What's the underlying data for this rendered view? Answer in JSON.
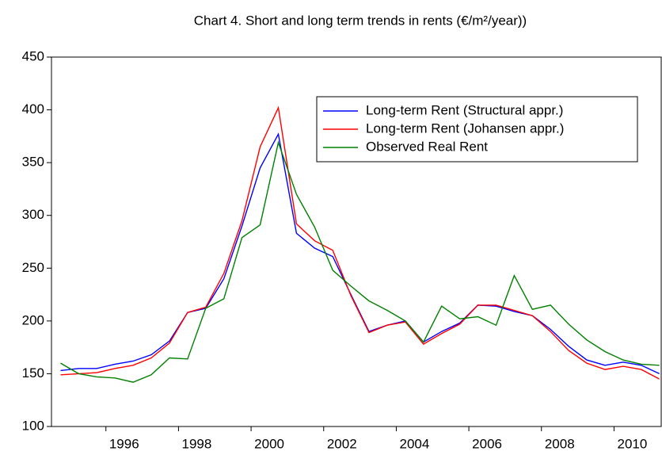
{
  "chart_data": {
    "type": "line",
    "title": "Chart 4. Short and long term trends in rents (€/m²/year))",
    "x": [
      1994.75,
      1995.25,
      1995.75,
      1996.25,
      1996.75,
      1997.25,
      1997.75,
      1998.25,
      1998.75,
      1999.25,
      1999.75,
      2000.25,
      2000.75,
      2001.25,
      2001.75,
      2002.25,
      2002.75,
      2003.25,
      2003.75,
      2004.25,
      2004.75,
      2005.25,
      2005.75,
      2006.25,
      2006.75,
      2007.25,
      2007.75,
      2008.25,
      2008.75,
      2009.25,
      2009.75,
      2010.25,
      2010.75,
      2011.25
    ],
    "series": [
      {
        "name": "Long-term Rent (Structural appr.)",
        "color": "#0000ff",
        "values": [
          153,
          155,
          155,
          159,
          162,
          168,
          181,
          208,
          212,
          240,
          290,
          345,
          377,
          283,
          269,
          261,
          225,
          190,
          196,
          200,
          180,
          190,
          198,
          215,
          214,
          209,
          205,
          192,
          176,
          163,
          158,
          161,
          158,
          150
        ]
      },
      {
        "name": "Long-term Rent (Johansen appr.)",
        "color": "#ff0000",
        "values": [
          149,
          150,
          151,
          155,
          158,
          165,
          179,
          208,
          213,
          245,
          295,
          365,
          402,
          292,
          276,
          267,
          224,
          189,
          196,
          199,
          178,
          188,
          197,
          215,
          215,
          210,
          205,
          190,
          172,
          160,
          154,
          157,
          154,
          145
        ]
      },
      {
        "name": "Observed Real Rent",
        "color": "#008000",
        "values": [
          160,
          150,
          147,
          146,
          142,
          149,
          165,
          164,
          212,
          221,
          279,
          291,
          369,
          320,
          289,
          248,
          233,
          219,
          210,
          200,
          180,
          214,
          202,
          204,
          196,
          243,
          211,
          215,
          197,
          182,
          171,
          163,
          159,
          158
        ]
      }
    ],
    "xlim": [
      1994.5,
      2011.3
    ],
    "xticks": [
      1996,
      1998,
      2000,
      2002,
      2004,
      2006,
      2008,
      2010
    ],
    "ylim": [
      100,
      450
    ],
    "yticks": [
      100,
      150,
      200,
      250,
      300,
      350,
      400,
      450
    ],
    "legend": "upper right"
  }
}
